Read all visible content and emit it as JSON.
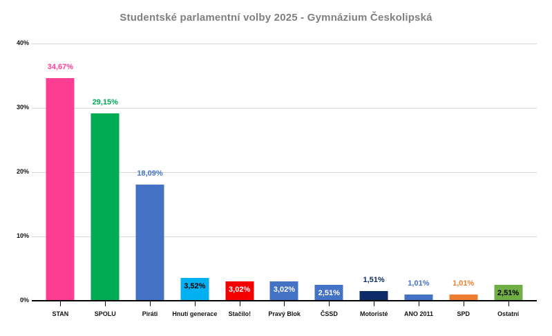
{
  "title": "Studentské parlamentní volby 2025 - Gymnázium Českolipská",
  "colors": {
    "background": "#ffffff",
    "title_text": "#7f7f7f",
    "gridline": "#d6d6d6",
    "axis_line": "#000000",
    "axis_text": "#111111"
  },
  "chart_data": {
    "type": "bar",
    "title": "Studentské parlamentní volby 2025 - Gymnázium Českolipská",
    "categories": [
      "STAN",
      "SPOLU",
      "Piráti",
      "Hnutí generace",
      "Stačilo!",
      "Pravý Blok",
      "ČSSD",
      "Motoristé",
      "ANO 2011",
      "SPD",
      "Ostatní"
    ],
    "values": [
      34.67,
      29.15,
      18.09,
      3.52,
      3.02,
      3.02,
      2.51,
      1.51,
      1.01,
      1.01,
      2.51
    ],
    "value_labels": [
      "34,67%",
      "29,15%",
      "18,09%",
      "3,52%",
      "3,02%",
      "3,02%",
      "2,51%",
      "1,51%",
      "1,01%",
      "1,01%",
      "2,51%"
    ],
    "bar_colors": [
      "#fc3d92",
      "#00ab54",
      "#4472c4",
      "#00b0f0",
      "#f40000",
      "#4472c4",
      "#4472c4",
      "#0d2b66",
      "#4472c4",
      "#ed7d31",
      "#70ad47"
    ],
    "label_positions": [
      "above",
      "above",
      "above",
      "inside",
      "inside",
      "inside",
      "inside",
      "above",
      "above",
      "above",
      "inside"
    ],
    "label_colors": [
      "#fc3d92",
      "#00ab54",
      "#4472c4",
      "#000000",
      "#ffffff",
      "#ffffff",
      "#ffffff",
      "#0d2b66",
      "#4472c4",
      "#ed7d31",
      "#000000"
    ],
    "xlabel": "",
    "ylabel": "",
    "ylim": [
      0,
      40
    ],
    "ytick_step": 10,
    "yticks": [
      "0%",
      "10%",
      "20%",
      "30%",
      "40%"
    ],
    "grid": true,
    "legend": false
  }
}
